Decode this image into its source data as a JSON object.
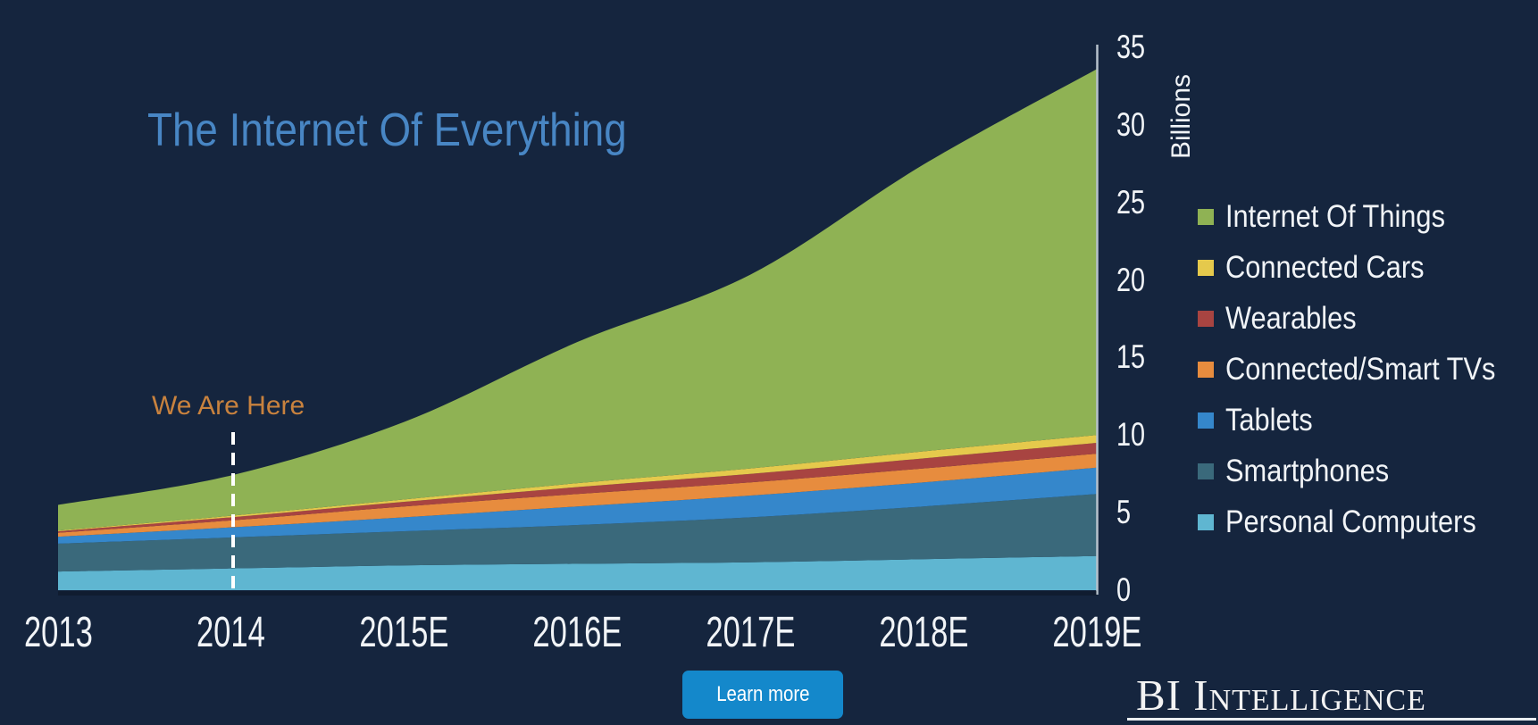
{
  "page": {
    "background_color": "#15253e"
  },
  "header": {
    "title": "The Internet Of Everything",
    "title_color": "#4886c4"
  },
  "annotation": {
    "label": "We Are Here",
    "color": "#c8823e",
    "at_category": "2014"
  },
  "chart_data": {
    "type": "area",
    "stacked": true,
    "title": "The Internet Of Everything",
    "categories": [
      "2013",
      "2014",
      "2015E",
      "2016E",
      "2017E",
      "2018E",
      "2019E"
    ],
    "series": [
      {
        "name": "Personal Computers",
        "color": "#5fb6d1",
        "values": [
          1.2,
          1.4,
          1.6,
          1.7,
          1.8,
          2.0,
          2.2
        ]
      },
      {
        "name": "Smartphones",
        "color": "#3a697b",
        "values": [
          1.8,
          2.0,
          2.2,
          2.5,
          2.9,
          3.4,
          4.0
        ]
      },
      {
        "name": "Tablets",
        "color": "#3587cb",
        "values": [
          0.45,
          0.65,
          0.9,
          1.2,
          1.4,
          1.55,
          1.7
        ]
      },
      {
        "name": "Connected/Smart TVs",
        "color": "#e78c3e",
        "values": [
          0.25,
          0.45,
          0.7,
          0.8,
          0.85,
          0.9,
          0.9
        ]
      },
      {
        "name": "Wearables",
        "color": "#a84441",
        "values": [
          0.1,
          0.2,
          0.3,
          0.45,
          0.55,
          0.65,
          0.7
        ]
      },
      {
        "name": "Connected Cars",
        "color": "#e5c94c",
        "values": [
          0.05,
          0.1,
          0.15,
          0.25,
          0.35,
          0.45,
          0.5
        ]
      },
      {
        "name": "Internet Of Things",
        "color": "#8fb254",
        "values": [
          1.65,
          2.6,
          5.0,
          9.1,
          12.5,
          18.5,
          23.6
        ]
      }
    ],
    "xlabel": "",
    "ylabel": "Billions",
    "ylim": [
      0,
      35
    ],
    "ytick_step": 5,
    "grid": false,
    "legend_position": "right",
    "stack_order": "bottom-to-top",
    "annotations": [
      {
        "label": "We Are Here",
        "x": "2014",
        "style": "dashed-vertical-line"
      }
    ]
  },
  "y_axis": {
    "unit_label": "Billions",
    "ticks": [
      "35",
      "30",
      "25",
      "20",
      "15",
      "10",
      "5",
      "0"
    ]
  },
  "x_axis": {
    "labels": [
      "2013",
      "2014",
      "2015E",
      "2016E",
      "2017E",
      "2018E",
      "2019E"
    ]
  },
  "footer": {
    "learn_more_label": "Learn more",
    "button_color": "#1488cb",
    "brand": "BI Intelligence"
  }
}
